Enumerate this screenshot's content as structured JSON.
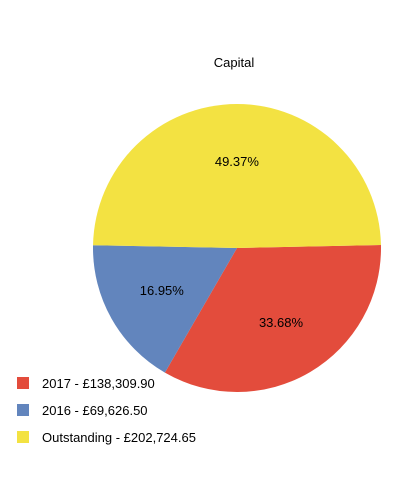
{
  "chart_data": {
    "type": "pie",
    "title": "Capital",
    "slices": [
      {
        "label": "2017 - £138,309.90",
        "value": 138309.9,
        "percent_label": "33.68%",
        "color": "#e34c3c"
      },
      {
        "label": "2016 - £69,626.50",
        "value": 69626.5,
        "percent_label": "16.95%",
        "color": "#6285bd"
      },
      {
        "label": "Outstanding - £202,724.65",
        "value": 202724.65,
        "percent_label": "49.37%",
        "color": "#f3e242"
      }
    ],
    "legend_position": "bottom-left"
  }
}
